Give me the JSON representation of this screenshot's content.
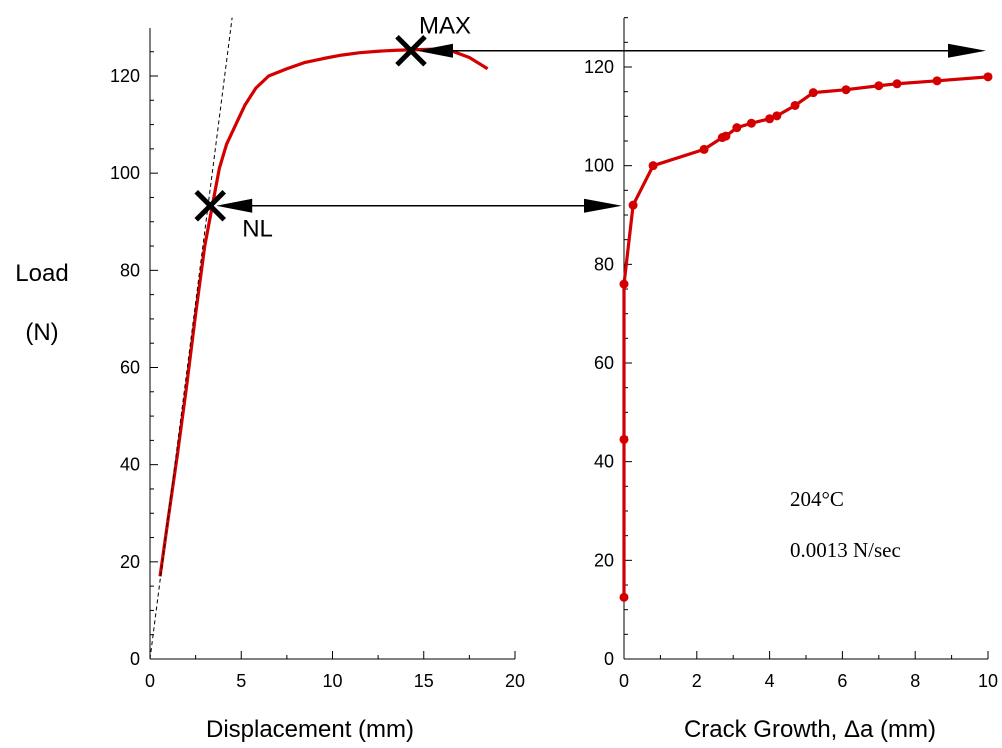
{
  "chart_data": [
    {
      "type": "line",
      "xlabel": "Displacement  (mm)",
      "ylabel_line1": "Load",
      "ylabel_line2": "(N)",
      "xlim": [
        0,
        20
      ],
      "ylim": [
        0,
        130
      ],
      "xticks": [
        0,
        5,
        10,
        15,
        20
      ],
      "yticks": [
        0,
        20,
        40,
        60,
        80,
        100,
        120
      ],
      "grid": false,
      "series": [
        {
          "color": "#d40000",
          "x": [
            0.55,
            1.0,
            1.5,
            2.0,
            2.5,
            3.0,
            3.4,
            3.8,
            4.2,
            4.7,
            5.2,
            5.8,
            6.5,
            7.5,
            8.5,
            9.5,
            10.5,
            11.5,
            12.5,
            13.5,
            14.5,
            15.5,
            16.5,
            17.5,
            18.5
          ],
          "y": [
            17,
            29,
            42,
            56,
            71,
            85,
            93,
            101,
            106,
            110,
            114,
            117.5,
            120,
            121.5,
            122.8,
            123.6,
            124.3,
            124.8,
            125.1,
            125.3,
            125.4,
            125.5,
            125.2,
            123.8,
            121.5
          ]
        },
        {
          "name_hidden": "",
          "style": "dashed",
          "color": "#000000",
          "x": [
            0,
            4.5
          ],
          "y": [
            0,
            132
          ]
        }
      ],
      "markers": [
        {
          "label": "NL",
          "x": 3.3,
          "y": 93.3
        },
        {
          "label": "MAX",
          "x": 14.3,
          "y": 125.2
        }
      ]
    },
    {
      "type": "line",
      "xlabel": "Crack Growth, Δa  (mm)",
      "xlim": [
        0,
        10
      ],
      "ylim": [
        0,
        130
      ],
      "xticks": [
        0,
        2,
        4,
        6,
        8,
        10
      ],
      "yticks": [
        0,
        20,
        40,
        60,
        80,
        100,
        120
      ],
      "grid": false,
      "series": [
        {
          "color": "#d40000",
          "markers": "circle",
          "x": [
            0.0,
            0.0,
            0.0,
            0.25,
            0.8,
            2.2,
            2.7,
            2.8,
            3.1,
            3.5,
            4.0,
            4.2,
            4.7,
            5.2,
            6.1,
            7.0,
            7.5,
            8.6,
            10.0
          ],
          "y": [
            12.5,
            44.5,
            76,
            92,
            100,
            103.3,
            105.7,
            106,
            107.7,
            108.6,
            109.5,
            110.1,
            112.2,
            114.8,
            115.4,
            116.2,
            116.6,
            117.2,
            118
          ]
        }
      ]
    }
  ],
  "arrows": [
    {
      "from_chart": 0,
      "from_x": 3.3,
      "to_chart": 1,
      "to_x": 0,
      "y": 93.3
    },
    {
      "from_chart": 0,
      "from_x": 14.3,
      "to_chart": 1,
      "to_x": 10,
      "y": 125.2
    }
  ],
  "annotations": {
    "temperature": "204°C",
    "rate": "0.0013 N/sec"
  }
}
